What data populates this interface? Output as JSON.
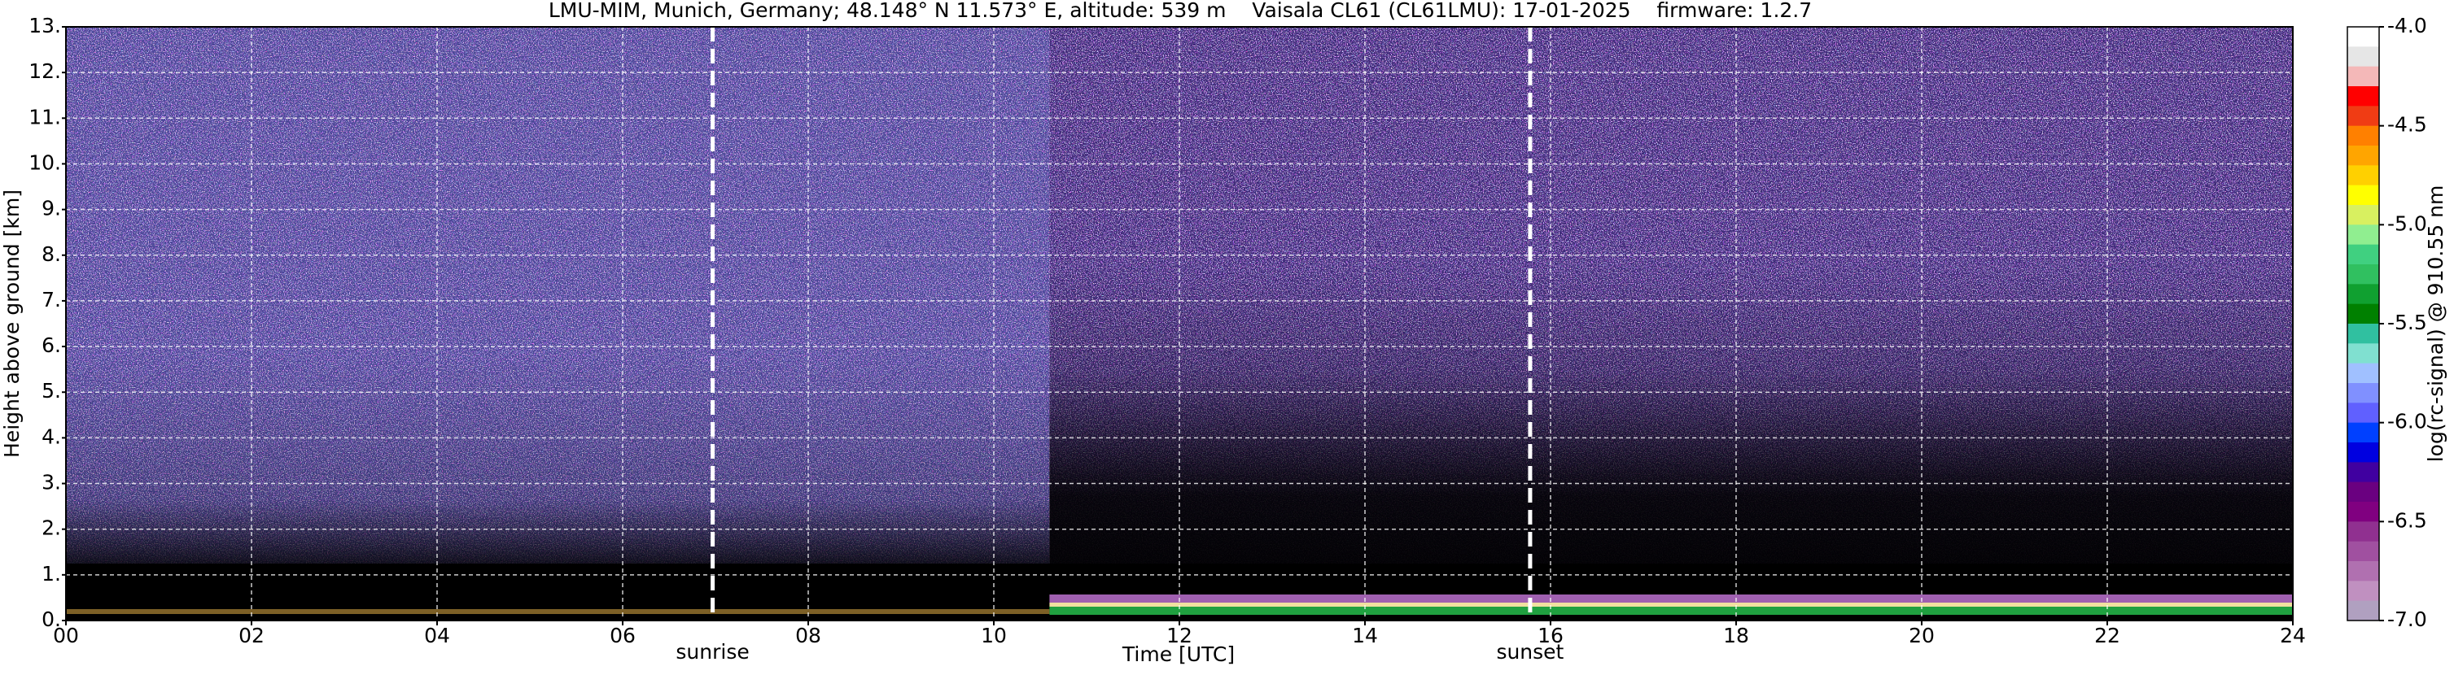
{
  "chart_data": {
    "type": "heatmap",
    "title": "LMU-MIM, Munich, Germany; 48.148° N 11.573° E, altitude: 539 m    Vaisala CL61 (CL61LMU): 17-01-2025    firmware: 1.2.7",
    "xlabel": "Time [UTC]",
    "ylabel": "Height above ground [km]",
    "xlim": [
      0,
      24
    ],
    "ylim": [
      0,
      13
    ],
    "xticks": [
      {
        "value": 0,
        "label": "00"
      },
      {
        "value": 2,
        "label": "02"
      },
      {
        "value": 4,
        "label": "04"
      },
      {
        "value": 6,
        "label": "06"
      },
      {
        "value": 8,
        "label": "08"
      },
      10,
      12,
      14,
      16,
      18,
      20,
      22,
      24
    ],
    "yticks": [
      {
        "value": 0,
        "label": "0."
      },
      {
        "value": 1,
        "label": "1."
      },
      {
        "value": 2,
        "label": "2."
      },
      {
        "value": 3,
        "label": "3."
      },
      {
        "value": 4,
        "label": "4."
      },
      {
        "value": 5,
        "label": "5."
      },
      {
        "value": 6,
        "label": "6."
      },
      {
        "value": 7,
        "label": "7."
      },
      {
        "value": 8,
        "label": "8."
      },
      {
        "value": 9,
        "label": "9."
      },
      {
        "value": 10,
        "label": "10."
      },
      {
        "value": 11,
        "label": "11."
      },
      {
        "value": 12,
        "label": "12."
      },
      {
        "value": 13,
        "label": "13."
      }
    ],
    "grid": true,
    "annotations": [
      {
        "text": "sunrise",
        "x": 6.97
      },
      {
        "text": "sunset",
        "x": 15.78
      }
    ],
    "colorbar": {
      "label": "log(rc-signal) @ 910.55 nm",
      "lim": [
        -7,
        -4
      ],
      "ticks": [
        {
          "value": -4,
          "label": "-4.0"
        },
        {
          "value": -4.5,
          "label": "-4.5"
        },
        {
          "value": -5,
          "label": "-5.0"
        },
        {
          "value": -5.5,
          "label": "-5.5"
        },
        {
          "value": -6,
          "label": "-6.0"
        },
        {
          "value": -6.5,
          "label": "-6.5"
        },
        {
          "value": -7,
          "label": "-7.0"
        }
      ],
      "colors": [
        "#ffffff",
        "#e6e6e6",
        "#f4b8b8",
        "#ff0000",
        "#f03c14",
        "#ff8000",
        "#ffa500",
        "#ffd000",
        "#ffff00",
        "#d8f060",
        "#90ee90",
        "#40d080",
        "#30c060",
        "#10a030",
        "#008000",
        "#30c0a0",
        "#80e0d0",
        "#a0c0ff",
        "#8090ff",
        "#6060ff",
        "#0040ff",
        "#0000e0",
        "#4000a0",
        "#6a0080",
        "#800080",
        "#903090",
        "#a050a0",
        "#b070b0",
        "#c090c0",
        "#b0a0c0"
      ]
    }
  }
}
